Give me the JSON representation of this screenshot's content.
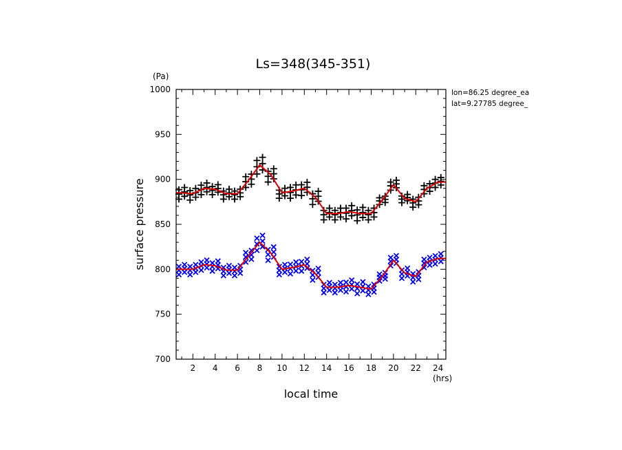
{
  "chart_data": {
    "type": "scatter",
    "title": "Ls=348(345-351)",
    "xlabel": "local time",
    "ylabel": "surface pressure",
    "xunit": "(hrs)",
    "yunit": "(Pa)",
    "xlim": [
      0.5,
      24.7
    ],
    "ylim": [
      700,
      1000
    ],
    "xticks": [
      2,
      4,
      6,
      8,
      10,
      12,
      14,
      16,
      18,
      20,
      22,
      24
    ],
    "yticks": [
      700,
      750,
      800,
      850,
      900,
      950,
      1000
    ],
    "annotations": [
      "lon=86.25 degree_ea",
      "lat=9.27785 degree_"
    ],
    "hours": [
      1,
      2,
      3,
      4,
      5,
      6,
      7,
      8,
      9,
      10,
      11,
      12,
      13,
      14,
      15,
      16,
      17,
      18,
      19,
      20,
      21,
      22,
      23,
      24
    ],
    "series": [
      {
        "marker": "+",
        "color": "#000000",
        "mean": [
          885,
          884,
          890,
          889,
          884,
          884,
          899,
          916,
          905,
          885,
          887,
          890,
          880,
          862,
          862,
          864,
          862,
          862,
          877,
          894,
          879,
          875,
          890,
          897
        ],
        "spread": [
          7,
          7,
          7,
          6,
          6,
          6,
          8,
          10,
          8,
          6,
          8,
          8,
          8,
          7,
          7,
          8,
          8,
          7,
          5,
          6,
          5,
          6,
          6,
          6
        ]
      },
      {
        "marker": "x",
        "color": "#0000ee",
        "mean": [
          800,
          800,
          805,
          804,
          799,
          799,
          815,
          830,
          818,
          800,
          802,
          805,
          795,
          780,
          780,
          782,
          780,
          778,
          792,
          810,
          796,
          792,
          808,
          812
        ],
        "spread": [
          6,
          6,
          6,
          6,
          6,
          6,
          7,
          9,
          8,
          6,
          7,
          7,
          7,
          6,
          6,
          7,
          7,
          6,
          5,
          6,
          6,
          6,
          6,
          6
        ]
      }
    ],
    "mean_line_color": "#dd0000"
  }
}
